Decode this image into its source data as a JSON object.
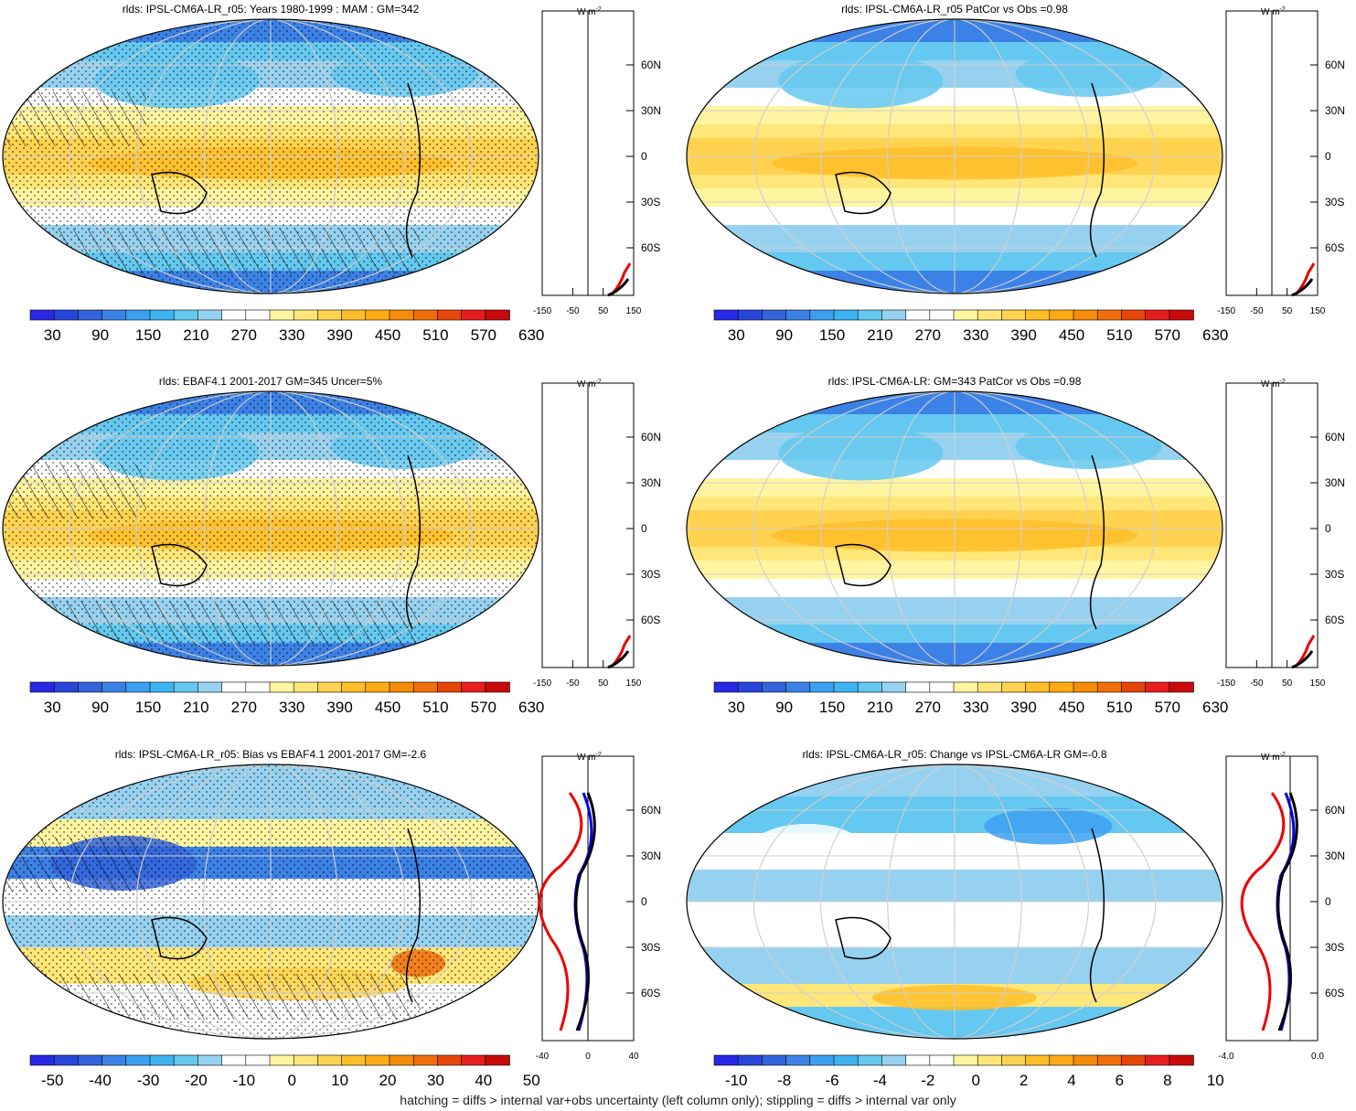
{
  "panels": [
    {
      "title": "rlds: IPSL-CM6A-LR_r05: Years 1980-1999 : MAM : GM=342",
      "field": "abs",
      "hatch": true,
      "profile": {
        "xticks": [
          "-150",
          "-50",
          "50",
          "150"
        ],
        "unit": "W m",
        "unit_sup": "-2"
      },
      "colorbar_labels": [
        "30",
        "90",
        "150",
        "210",
        "270",
        "330",
        "390",
        "450",
        "510",
        "570",
        "630"
      ]
    },
    {
      "title": "rlds: IPSL-CM6A-LR_r05 PatCor vs Obs =0.98",
      "field": "abs",
      "hatch": false,
      "profile": {
        "xticks": [
          "-150",
          "-50",
          "50",
          "150"
        ],
        "unit": "W m",
        "unit_sup": "-2"
      },
      "colorbar_labels": [
        "30",
        "90",
        "150",
        "210",
        "270",
        "330",
        "390",
        "450",
        "510",
        "570",
        "630"
      ]
    },
    {
      "title": "rlds: EBAF4.1 2001-2017 GM=345 Uncer=5%",
      "field": "abs",
      "hatch": true,
      "profile": {
        "xticks": [
          "-150",
          "-50",
          "50",
          "150"
        ],
        "unit": "W m",
        "unit_sup": "-2"
      },
      "colorbar_labels": [
        "30",
        "90",
        "150",
        "210",
        "270",
        "330",
        "390",
        "450",
        "510",
        "570",
        "630"
      ]
    },
    {
      "title": "rlds: IPSL-CM6A-LR: GM=343 PatCor vs Obs =0.98",
      "field": "abs",
      "hatch": false,
      "profile": {
        "xticks": [
          "-150",
          "-50",
          "50",
          "150"
        ],
        "unit": "W m",
        "unit_sup": "-2"
      },
      "colorbar_labels": [
        "30",
        "90",
        "150",
        "210",
        "270",
        "330",
        "390",
        "450",
        "510",
        "570",
        "630"
      ]
    },
    {
      "title": "rlds: IPSL-CM6A-LR_r05: Bias vs EBAF4.1 2001-2017 GM=-2.6",
      "field": "bias",
      "hatch": true,
      "profile": {
        "xticks": [
          "-40",
          "0",
          "40"
        ],
        "unit": "W m",
        "unit_sup": "-2"
      },
      "colorbar_labels": [
        "-50",
        "-40",
        "-30",
        "-20",
        "-10",
        "0",
        "10",
        "20",
        "30",
        "40",
        "50"
      ]
    },
    {
      "title": "rlds: IPSL-CM6A-LR_r05: Change vs IPSL-CM6A-LR GM=-0.8",
      "field": "change",
      "hatch": false,
      "profile": {
        "xticks": [
          "-4.0",
          "0.0"
        ],
        "unit": "W m",
        "unit_sup": "-2"
      },
      "colorbar_labels": [
        "-10",
        "-8",
        "-6",
        "-4",
        "-2",
        "0",
        "2",
        "4",
        "6",
        "8",
        "10"
      ]
    }
  ],
  "lat_labels": [
    "60N",
    "30N",
    "0",
    "30S",
    "60S"
  ],
  "colorbar_colors": [
    "#2828e6",
    "#2846dc",
    "#3264dc",
    "#3c82e6",
    "#3ca0f0",
    "#3cb4f0",
    "#64c8f0",
    "#96d2f0",
    "#ffffff",
    "#ffffff",
    "#fff5a0",
    "#ffe678",
    "#ffd250",
    "#ffbe28",
    "#ffaa14",
    "#f58c0a",
    "#f06e0a",
    "#e6460a",
    "#e61e1e",
    "#c80a0a"
  ],
  "footer": "hatching = diffs > internal var+obs uncertainty (left column only); stippling = diffs > internal var only",
  "chart_data": [
    {
      "type": "heatmap",
      "title": "rlds: IPSL-CM6A-LR_r05: Years 1980-1999 : MAM : GM=342",
      "colorbar": [
        30,
        90,
        150,
        210,
        270,
        330,
        390,
        450,
        510,
        570,
        630
      ],
      "profile_xlim": [
        -150,
        150
      ],
      "ylabels": [
        "60N",
        "30N",
        "0",
        "30S",
        "60S"
      ]
    },
    {
      "type": "heatmap",
      "title": "rlds: IPSL-CM6A-LR_r05 PatCor vs Obs =0.98",
      "colorbar": [
        30,
        90,
        150,
        210,
        270,
        330,
        390,
        450,
        510,
        570,
        630
      ],
      "profile_xlim": [
        -150,
        150
      ]
    },
    {
      "type": "heatmap",
      "title": "rlds: EBAF4.1 2001-2017 GM=345 Uncer=5%",
      "colorbar": [
        30,
        90,
        150,
        210,
        270,
        330,
        390,
        450,
        510,
        570,
        630
      ],
      "profile_xlim": [
        -150,
        150
      ]
    },
    {
      "type": "heatmap",
      "title": "rlds: IPSL-CM6A-LR: GM=343 PatCor vs Obs =0.98",
      "colorbar": [
        30,
        90,
        150,
        210,
        270,
        330,
        390,
        450,
        510,
        570,
        630
      ],
      "profile_xlim": [
        -150,
        150
      ]
    },
    {
      "type": "heatmap",
      "title": "rlds: IPSL-CM6A-LR_r05: Bias vs EBAF4.1 2001-2017 GM=-2.6",
      "colorbar": [
        -50,
        -40,
        -30,
        -20,
        -10,
        0,
        10,
        20,
        30,
        40,
        50
      ],
      "profile_xlim": [
        -40,
        40
      ]
    },
    {
      "type": "heatmap",
      "title": "rlds: IPSL-CM6A-LR_r05: Change vs IPSL-CM6A-LR GM=-0.8",
      "colorbar": [
        -10,
        -8,
        -6,
        -4,
        -2,
        0,
        2,
        4,
        6,
        8,
        10
      ],
      "profile_xlim": [
        -6,
        2
      ]
    }
  ]
}
